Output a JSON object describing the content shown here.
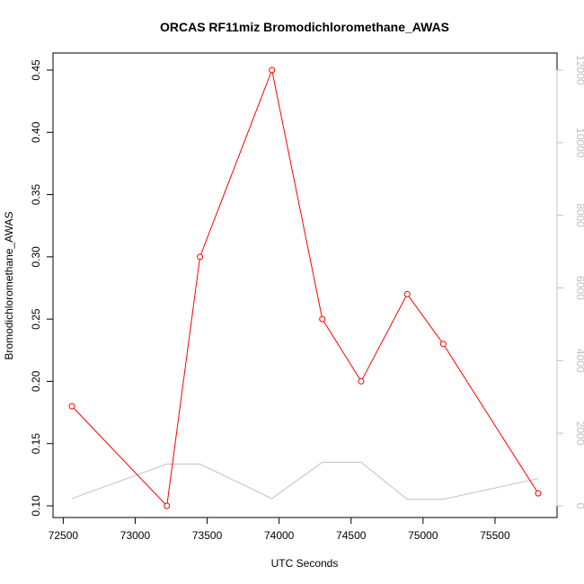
{
  "chart_data": {
    "type": "line",
    "title": "ORCAS RF11miz Bromodichloromethane_AWAS",
    "xlabel": "UTC Seconds",
    "ylabel": "Bromodichloromethane_AWAS",
    "xlim": [
      72560,
      75800
    ],
    "ylim": [
      0.1,
      0.45
    ],
    "y2lim": [
      0,
      12000
    ],
    "x_ticks": [
      72500,
      73000,
      73500,
      74000,
      74500,
      75000,
      75500
    ],
    "y_ticks": [
      0.1,
      0.15,
      0.2,
      0.25,
      0.3,
      0.35,
      0.4,
      0.45
    ],
    "y2_ticks": [
      0,
      2000,
      4000,
      6000,
      8000,
      10000,
      12000
    ],
    "grid": false,
    "colors": {
      "primary": "#ff0000",
      "secondary": "#c0c0c0"
    },
    "series": [
      {
        "axis": "left",
        "x": [
          72560,
          73220,
          73450,
          73950,
          74300,
          74570,
          74890,
          75140,
          75800
        ],
        "y": [
          0.18,
          0.1,
          0.3,
          0.45,
          0.25,
          0.2,
          0.27,
          0.23,
          0.11
        ],
        "markers": true
      },
      {
        "axis": "right",
        "x": [
          72560,
          73220,
          73450,
          73950,
          74300,
          74570,
          74890,
          75140,
          75800
        ],
        "y": [
          200,
          1150,
          1150,
          200,
          1200,
          1200,
          180,
          180,
          750
        ],
        "markers": false
      }
    ]
  }
}
